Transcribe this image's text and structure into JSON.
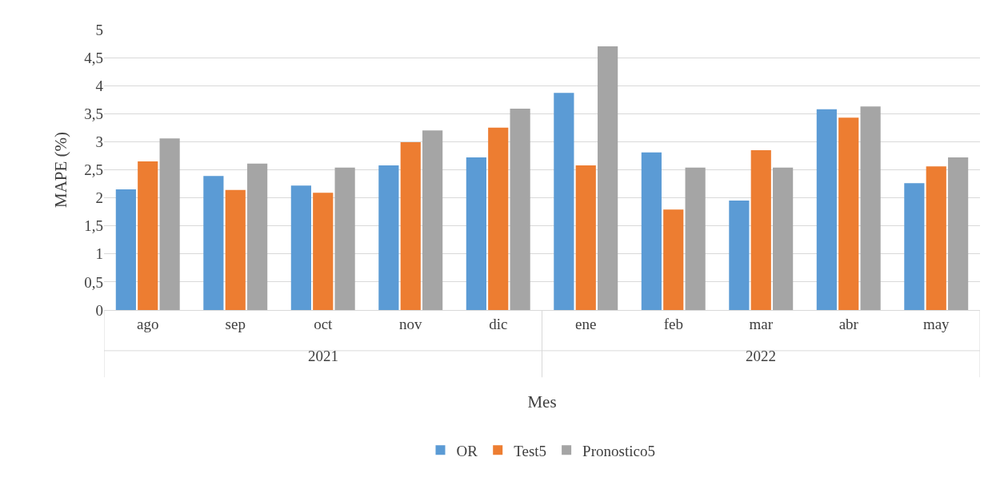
{
  "chart_data": {
    "type": "bar",
    "xlabel": "Mes",
    "ylabel": "MAPE (%)",
    "categories": [
      "ago",
      "sep",
      "oct",
      "nov",
      "dic",
      "ene",
      "feb",
      "mar",
      "abr",
      "may"
    ],
    "series": [
      {
        "name": "OR",
        "color": "#5b9bd5",
        "values": [
          2.15,
          2.39,
          2.22,
          2.58,
          2.72,
          3.87,
          2.81,
          1.95,
          3.58,
          2.26
        ]
      },
      {
        "name": "Test5",
        "color": "#ed7d31",
        "values": [
          2.65,
          2.14,
          2.09,
          2.99,
          3.25,
          2.58,
          1.79,
          2.85,
          3.43,
          2.56
        ]
      },
      {
        "name": "Pronostico5",
        "color": "#a5a5a5",
        "values": [
          3.06,
          2.61,
          2.54,
          3.2,
          3.59,
          4.7,
          2.54,
          2.54,
          3.63,
          2.72
        ]
      }
    ],
    "annotations": [
      "2021",
      "2022"
    ],
    "ylim": [
      0,
      5
    ],
    "yticks": [
      0,
      {
        "value": 0.5,
        "label": "0,5"
      },
      1,
      {
        "value": 1.5,
        "label": "1,5"
      },
      2,
      {
        "value": 2.5,
        "label": "2,5"
      },
      3,
      {
        "value": 3.5,
        "label": "3,5"
      },
      4,
      {
        "value": 4.5,
        "label": "4,5"
      },
      5
    ],
    "grid": "y",
    "legend": "bottom"
  }
}
